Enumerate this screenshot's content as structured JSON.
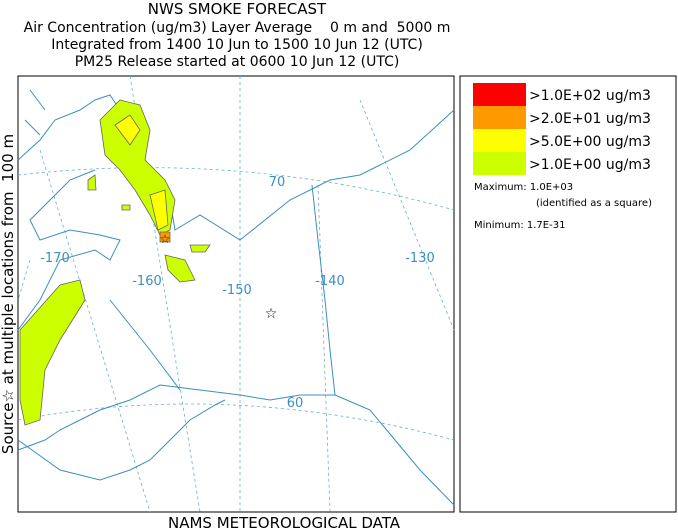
{
  "header": {
    "title": "NWS SMOKE FORECAST",
    "lines": [
      "Air Concentration (ug/m3) Layer Average    0 m and  5000 m",
      "Integrated from 1400 10 Jun to 1500 10 Jun 12 (UTC)",
      "PM25 Release started at 0600 10 Jun 12 (UTC)"
    ]
  },
  "side_label": "Source☆ at multiple locations from  100 m",
  "map": {
    "lon_labels": [
      "-170",
      "-160",
      "-150",
      "-140",
      "-130"
    ],
    "lat_labels": [
      "70",
      "60"
    ]
  },
  "legend": {
    "items": [
      {
        "label": ">1.0E+02 ug/m3",
        "color": "#ff0000"
      },
      {
        "label": ">2.0E+01 ug/m3",
        "color": "#ff9900"
      },
      {
        "label": ">5.0E+00 ug/m3",
        "color": "#ffff00"
      },
      {
        "label": ">1.0E+00 ug/m3",
        "color": "#ccff00"
      }
    ]
  },
  "stats": {
    "maximum": "Maximum: 1.0E+03",
    "max_note": "(identified as a square)",
    "minimum": "Minimum: 1.7E-31"
  },
  "footer": "NAMS METEOROLOGICAL DATA"
}
